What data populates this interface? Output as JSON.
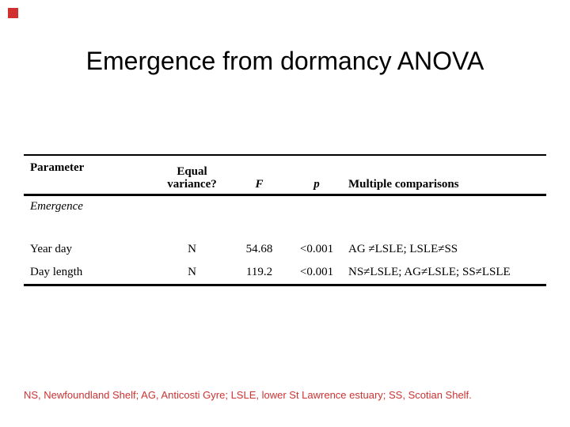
{
  "slide": {
    "title": "Emergence from dormancy ANOVA",
    "accent_color": "#d03030",
    "footnote": {
      "text": "NS, Newfoundland Shelf; AG, Anticosti Gyre; LSLE, lower St Lawrence estuary; SS, Scotian Shelf.",
      "color": "#cc3333"
    }
  },
  "table": {
    "headers": [
      "Parameter",
      "Equal variance?",
      "F",
      "p",
      "Multiple comparisons"
    ],
    "section_label": "Emergence",
    "rows": [
      [
        "Year day",
        "N",
        "54.68",
        "<0.001",
        "AG ≠LSLE; LSLE≠SS"
      ],
      [
        "Day length",
        "N",
        "119.2",
        "<0.001",
        "NS≠LSLE; AG≠LSLE; SS≠LSLE"
      ]
    ]
  }
}
